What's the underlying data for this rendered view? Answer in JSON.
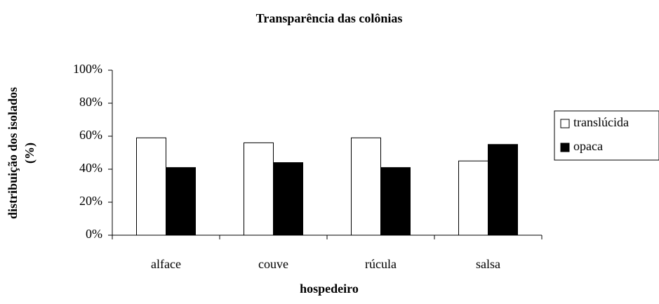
{
  "chart_data": {
    "type": "bar",
    "title": "Transparência das colônias",
    "xlabel": "hospedeiro",
    "ylabel": [
      "distribuição dos isolados",
      "(%)"
    ],
    "categories": [
      "alface",
      "couve",
      "rúcula",
      "salsa"
    ],
    "series": [
      {
        "name": "translúcida",
        "color": "#ffffff",
        "values": [
          59,
          56,
          59,
          45
        ]
      },
      {
        "name": "opaca",
        "color": "#000000",
        "values": [
          41,
          44,
          41,
          55
        ]
      }
    ],
    "ylim": [
      0,
      100
    ],
    "yticks": [
      {
        "value": 0,
        "label": "0%"
      },
      {
        "value": 20,
        "label": "20%"
      },
      {
        "value": 40,
        "label": "40%"
      },
      {
        "value": 60,
        "label": "60%"
      },
      {
        "value": 80,
        "label": "80%"
      },
      {
        "value": 100,
        "label": "100%"
      }
    ],
    "grid": false,
    "legend": "right"
  }
}
